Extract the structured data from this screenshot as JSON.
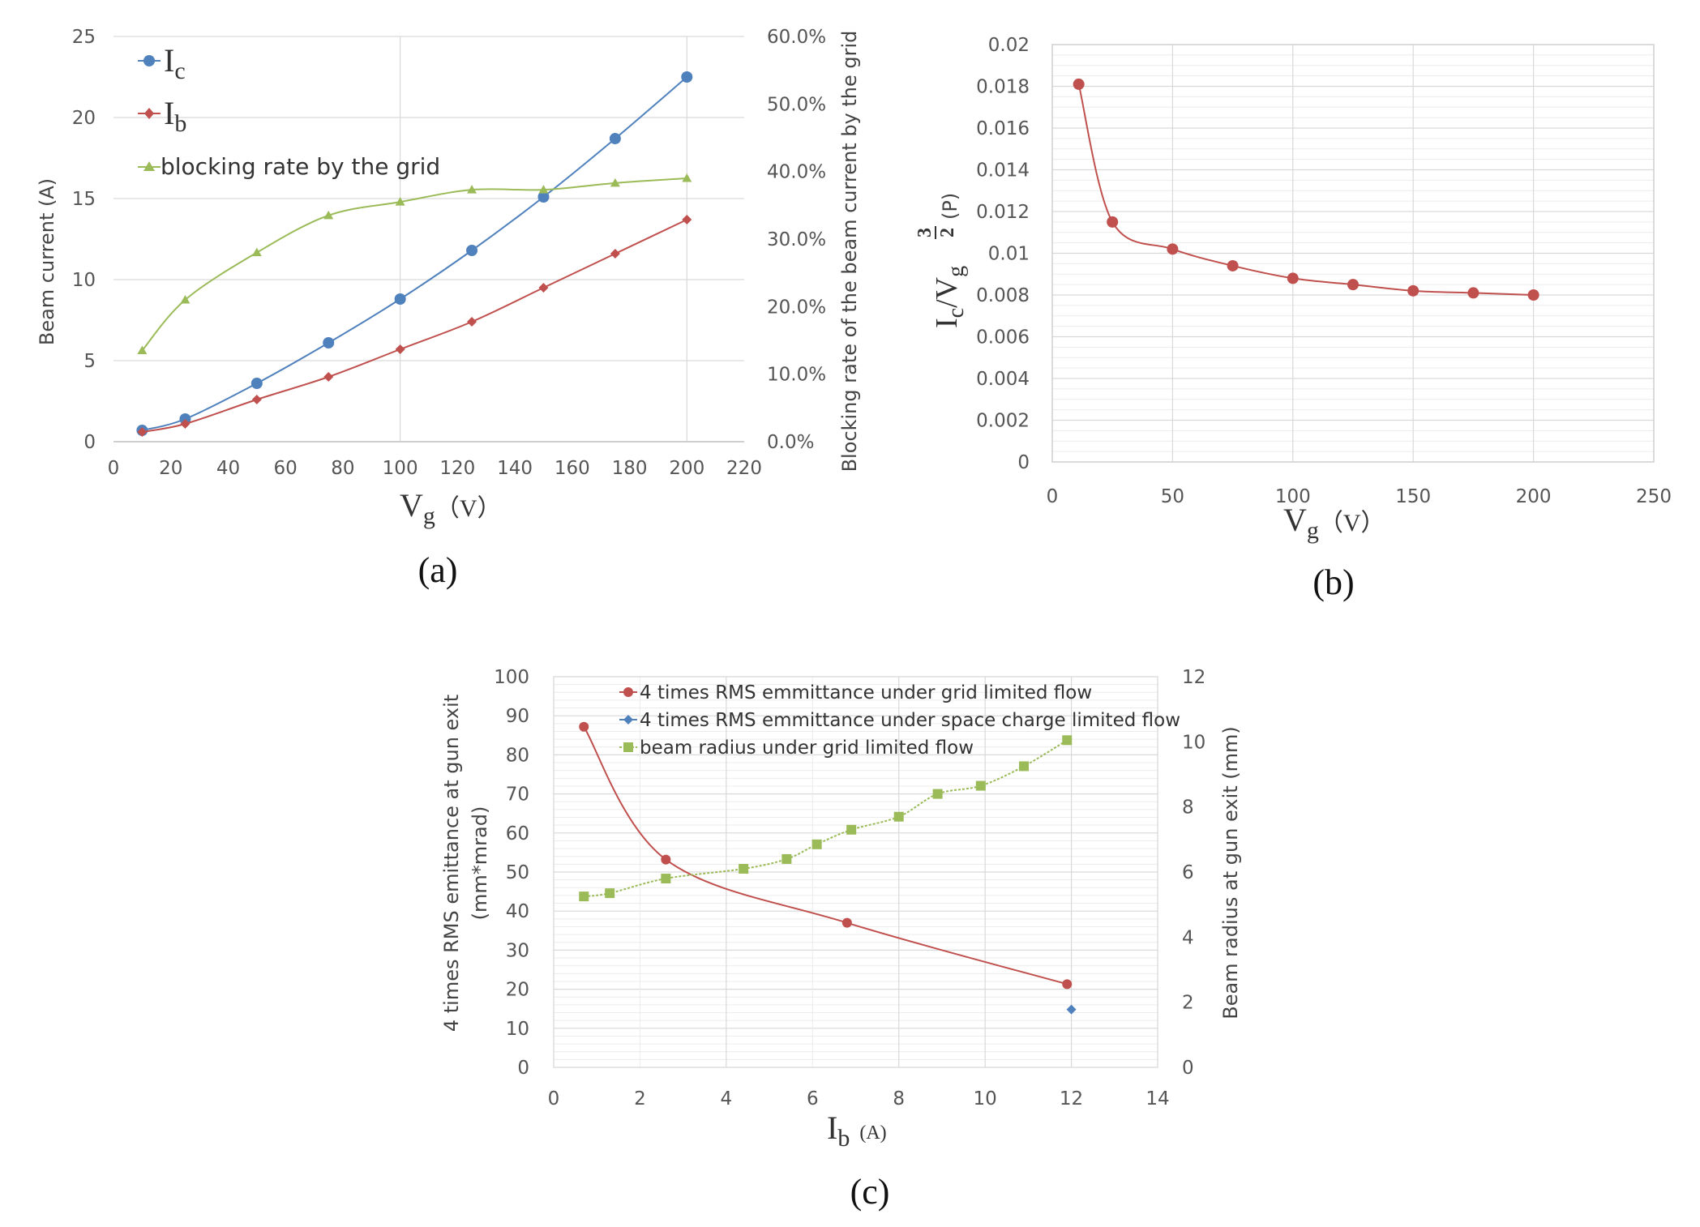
{
  "chart_data": [
    {
      "id": "a",
      "type": "line",
      "caption": "(a)",
      "x": [
        10,
        25,
        50,
        75,
        100,
        125,
        150,
        175,
        200
      ],
      "xlabel": "V",
      "xlabel_sub": "g",
      "xlabel_unit": "（V）",
      "ylabel": "Beam current (A)",
      "y2label": "Blocking rate of the beam current by the grid",
      "xlim": [
        0,
        220
      ],
      "xticks": [
        0,
        20,
        40,
        60,
        80,
        100,
        120,
        140,
        160,
        180,
        200,
        220
      ],
      "ylim": [
        0,
        25
      ],
      "yticks": [
        0,
        5,
        10,
        15,
        20,
        25
      ],
      "y2lim": [
        0,
        0.6
      ],
      "y2ticks": [
        0,
        0.1,
        0.2,
        0.3,
        0.4,
        0.5,
        0.6
      ],
      "y2ticklabels": [
        "0.0%",
        "10.0%",
        "20.0%",
        "30.0%",
        "40.0%",
        "50.0%",
        "60.0%"
      ],
      "series": [
        {
          "name": "I",
          "sub": "c",
          "axis": "left",
          "marker": "circle",
          "color": "#4f81bd",
          "values": [
            0.7,
            1.4,
            3.6,
            6.1,
            8.8,
            11.8,
            15.1,
            18.7,
            22.5
          ]
        },
        {
          "name": "I",
          "sub": "b",
          "axis": "left",
          "marker": "diamond",
          "color": "#c0504d",
          "values": [
            0.6,
            1.1,
            2.6,
            4.0,
            5.7,
            7.4,
            9.5,
            11.6,
            13.7
          ]
        },
        {
          "name": "blocking rate by the grid",
          "axis": "right",
          "marker": "triangle",
          "color": "#9bbb59",
          "values": [
            0.135,
            0.21,
            0.28,
            0.335,
            0.355,
            0.373,
            0.373,
            0.383,
            0.39
          ]
        }
      ]
    },
    {
      "id": "b",
      "type": "line",
      "caption": "(b)",
      "x": [
        11,
        25,
        50,
        75,
        100,
        125,
        150,
        175,
        200
      ],
      "values": [
        0.0181,
        0.0115,
        0.0102,
        0.0094,
        0.0088,
        0.0085,
        0.0082,
        0.0081,
        0.008
      ],
      "color": "#c0504d",
      "xlabel": "V",
      "xlabel_sub": "g",
      "xlabel_unit": "（V）",
      "ylabel_main": "I",
      "ylabel_sub1": "c",
      "ylabel_slash": "/V",
      "ylabel_sub2": "g",
      "ylabel_num": "3",
      "ylabel_den": "2",
      "ylabel_unit": "(P)",
      "xlim": [
        0,
        250
      ],
      "xticks": [
        0,
        50,
        100,
        150,
        200,
        250
      ],
      "ylim": [
        0,
        0.02
      ],
      "yticks": [
        0,
        0.002,
        0.004,
        0.006,
        0.008,
        0.01,
        0.012,
        0.014,
        0.016,
        0.018,
        0.02
      ],
      "yticklabels": [
        "0",
        "0.002",
        "0.004",
        "0.006",
        "0.008",
        "0.01",
        "0.012",
        "0.014",
        "0.016",
        "0.018",
        "0.02"
      ]
    },
    {
      "id": "c",
      "type": "line",
      "caption": "(c)",
      "xlabel": "I",
      "xlabel_sub": "b",
      "xlabel_unit": "(A)",
      "ylabel_line1": "4 times RMS emittance at gun exit",
      "ylabel_line2": "(mm*mrad)",
      "y2label": "Beam radius at gun exit (mm)",
      "xlim": [
        0,
        14
      ],
      "xticks": [
        0,
        2,
        4,
        6,
        8,
        10,
        12,
        14
      ],
      "ylim": [
        0,
        100
      ],
      "yticks": [
        0,
        10,
        20,
        30,
        40,
        50,
        60,
        70,
        80,
        90,
        100
      ],
      "y2lim": [
        0,
        12
      ],
      "y2ticks": [
        0,
        2,
        4,
        6,
        8,
        10,
        12
      ],
      "series": [
        {
          "name": "4 times RMS emmittance under grid limited flow",
          "axis": "left",
          "marker": "circle",
          "color": "#c0504d",
          "x": [
            0.7,
            2.6,
            6.8,
            11.9
          ],
          "values": [
            87.2,
            53.2,
            37.0,
            21.3
          ]
        },
        {
          "name": "4 times RMS emmittance under space charge limited flow",
          "axis": "left",
          "marker": "diamond",
          "color": "#4f81bd",
          "x": [
            12.0
          ],
          "values": [
            14.8
          ]
        },
        {
          "name": "beam radius  under grid limited flow",
          "axis": "right",
          "marker": "square",
          "color": "#9bbb59",
          "x": [
            0.7,
            1.3,
            2.6,
            4.4,
            5.4,
            6.1,
            6.9,
            8.0,
            8.9,
            9.9,
            10.9,
            11.9
          ],
          "values": [
            5.25,
            5.35,
            5.8,
            6.1,
            6.4,
            6.85,
            7.3,
            7.7,
            8.4,
            8.65,
            9.25,
            10.05
          ]
        }
      ]
    }
  ]
}
